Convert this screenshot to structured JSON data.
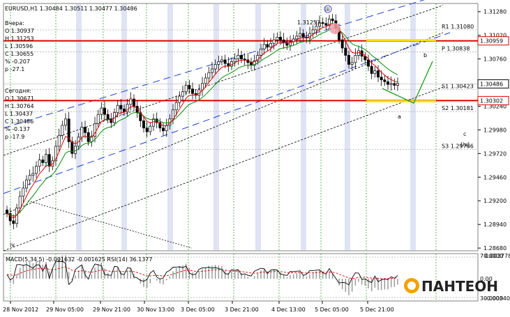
{
  "chart_data": {
    "type": "candlestick",
    "symbol_header": "EURUSD,H1  1.30484 1.30511 1.30477 1.30486",
    "info": {
      "yesterday_label": "Вчера:",
      "yesterday_lines": [
        "O 1.30937",
        "H 1.31253",
        "L 1.30596",
        "C 1.30655",
        "% -0.207",
        "p -27.1"
      ],
      "today_label": "Сегодня:",
      "today_lines": [
        "O 1.30671",
        "H 1.30764",
        "L 1.30437",
        "C 1.30486",
        "% -0.137",
        "p -17.9"
      ]
    },
    "y_ticks": [
      "1.31280",
      "1.31020",
      "1.30760",
      "1.30500",
      "1.30240",
      "1.29980",
      "1.29720",
      "1.29460",
      "1.29200",
      "1.28940",
      "1.28680"
    ],
    "ylim": [
      1.2865,
      1.3137
    ],
    "x_ticks": [
      "28 Nov 2012",
      "29 Nov 05:00",
      "29 Nov 21:00",
      "30 Nov 13:00",
      "3 Dec 05:00",
      "3 Dec 21:00",
      "4 Dec 13:00",
      "5 Dec 05:00",
      "5 Dec 21:00"
    ],
    "levels": {
      "resistance": "1.30959",
      "support": "1.30302",
      "current": "1.30486",
      "resistance_value": 1.30959,
      "support_value": 1.30302,
      "current_value": 1.30486
    },
    "pivots": [
      {
        "label": "R1",
        "value": "1.31080"
      },
      {
        "label": "P",
        "value": "1.30838"
      },
      {
        "label": "S1",
        "value": "1.30423"
      },
      {
        "label": "S2",
        "value": "1.30181"
      },
      {
        "label": "S3",
        "value": "1.29766"
      }
    ],
    "waves": {
      "iii": "iii",
      "iv": "iv",
      "iv_paren": "(iv)",
      "a": "a",
      "b": "b",
      "c": "c"
    },
    "trendline_label": "1.31253",
    "prices": [
      1.2906,
      1.2898,
      1.2895,
      1.2912,
      1.2925,
      1.2934,
      1.2943,
      1.2948,
      1.295,
      1.2958,
      1.2965,
      1.2962,
      1.2971,
      1.2958,
      1.2964,
      1.298,
      1.2992,
      1.3003,
      1.301,
      1.2985,
      1.2972,
      1.298,
      1.299,
      1.3001,
      1.2995,
      1.2985,
      1.2991,
      1.3005,
      1.3015,
      1.3022,
      1.3015,
      1.301,
      1.3006,
      1.3017,
      1.3025,
      1.3021,
      1.3018,
      1.3026,
      1.3032,
      1.3024,
      1.3017,
      1.3008,
      1.3,
      1.2996,
      1.3002,
      1.301,
      1.3006,
      1.3,
      1.2997,
      1.3003,
      1.301,
      1.302,
      1.3028,
      1.3035,
      1.304,
      1.3047,
      1.3043,
      1.3038,
      1.3036,
      1.3042,
      1.3049,
      1.3055,
      1.3061,
      1.3065,
      1.307,
      1.3073,
      1.3075,
      1.3071,
      1.3068,
      1.3073,
      1.3076,
      1.308,
      1.3076,
      1.3075,
      1.3072,
      1.3069,
      1.3074,
      1.308,
      1.3087,
      1.3092,
      1.3089,
      1.3093,
      1.3097,
      1.31,
      1.3097,
      1.3094,
      1.3091,
      1.3095,
      1.3098,
      1.3101,
      1.3104,
      1.31,
      1.3099,
      1.3104,
      1.3108,
      1.3112,
      1.3116,
      1.3115,
      1.3113,
      1.312,
      1.3118,
      1.311,
      1.3097,
      1.3088,
      1.308,
      1.307,
      1.3072,
      1.308,
      1.3085,
      1.3079,
      1.3075,
      1.3068,
      1.306,
      1.3063,
      1.3056,
      1.3053,
      1.3051,
      1.3048,
      1.3049,
      1.3047,
      1.3049
    ],
    "indicator_label": "MACD(5,34,5) -0.001632 -0.001625  RSI(14) 36.1377",
    "indicator_ticks": [
      "70.0000",
      "0.003778",
      "0.00",
      "-0.003407",
      "30.0000"
    ],
    "logo": "ПАНТЕОН"
  }
}
